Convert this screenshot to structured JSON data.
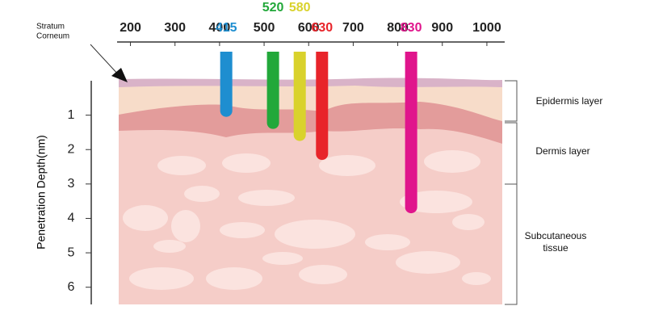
{
  "chart_data": {
    "type": "bar",
    "x": [
      415,
      520,
      580,
      630,
      830
    ],
    "values": [
      1.05,
      1.4,
      1.75,
      2.3,
      3.85
    ],
    "colors": [
      "#1e8ed0",
      "#22a83a",
      "#d9d22c",
      "#e8242a",
      "#e0158c"
    ],
    "xlim": [
      170,
      1040
    ],
    "xticks": [
      200,
      300,
      400,
      500,
      600,
      700,
      800,
      900,
      1000
    ],
    "ylim": [
      0,
      6.5
    ],
    "yticks": [
      1,
      2,
      3,
      4,
      5,
      6
    ],
    "ylabel": "Penetration Depth(nm)",
    "annotations": {
      "stratum": [
        "Stratum",
        "Corneum"
      ],
      "epidermis": "Epidermis layer",
      "dermis": "Dermis layer",
      "subcutaneous": [
        "Subcutaneous",
        "tissue"
      ]
    }
  }
}
